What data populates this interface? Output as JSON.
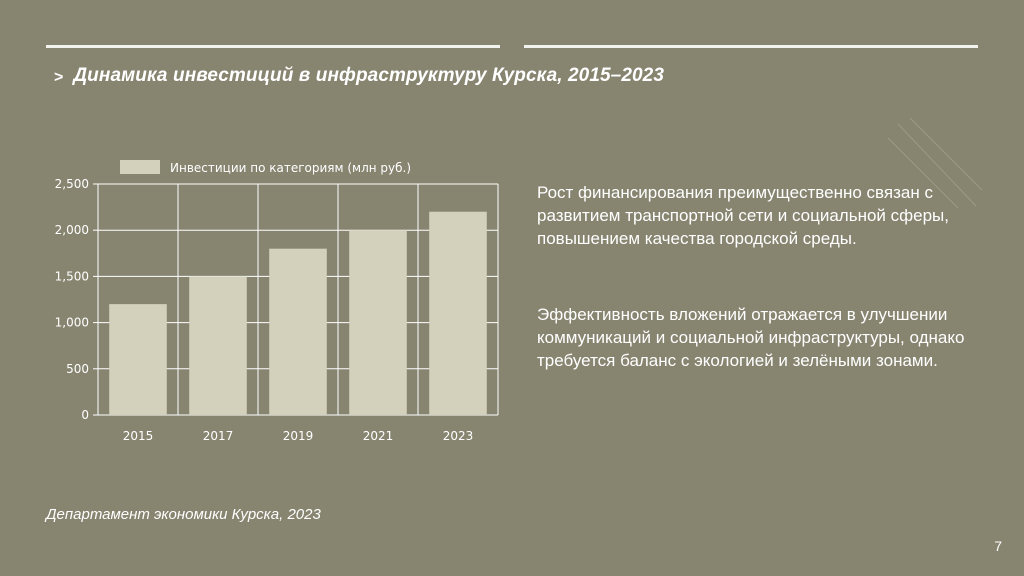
{
  "slide": {
    "title_marker": ">",
    "title": "Динамика инвестиций в инфраструктуру Курска, 2015–2023",
    "paragraphs": [
      "Рост финансирования преимущественно связан с развитием транспортной сети и социальной сферы, повышением качества городской среды.",
      "Эффективность вложений отражается в улучшении коммуникаций и социальной инфраструктуры, однако требуется баланс с экологией и зелёными зонами."
    ],
    "source": "Департамент экономики Курска, 2023",
    "page_number": "7"
  },
  "colors": {
    "background": "#878470",
    "bar_fill": "#d3d0bc",
    "grid": "#ffffff",
    "text": "#ffffff"
  },
  "chart_data": {
    "type": "bar",
    "categories": [
      "2015",
      "2017",
      "2019",
      "2021",
      "2023"
    ],
    "series": [
      {
        "name": "Инвестиции по категориям (млн руб.)",
        "values": [
          1200,
          1500,
          1800,
          2000,
          2200
        ]
      }
    ],
    "ylim": [
      0,
      2500
    ],
    "yticks": [
      0,
      500,
      1000,
      1500,
      2000,
      2500
    ],
    "ytick_labels": [
      "0",
      "500",
      "1,000",
      "1,500",
      "2,000",
      "2,500"
    ],
    "grid": true,
    "legend": "top-left"
  }
}
